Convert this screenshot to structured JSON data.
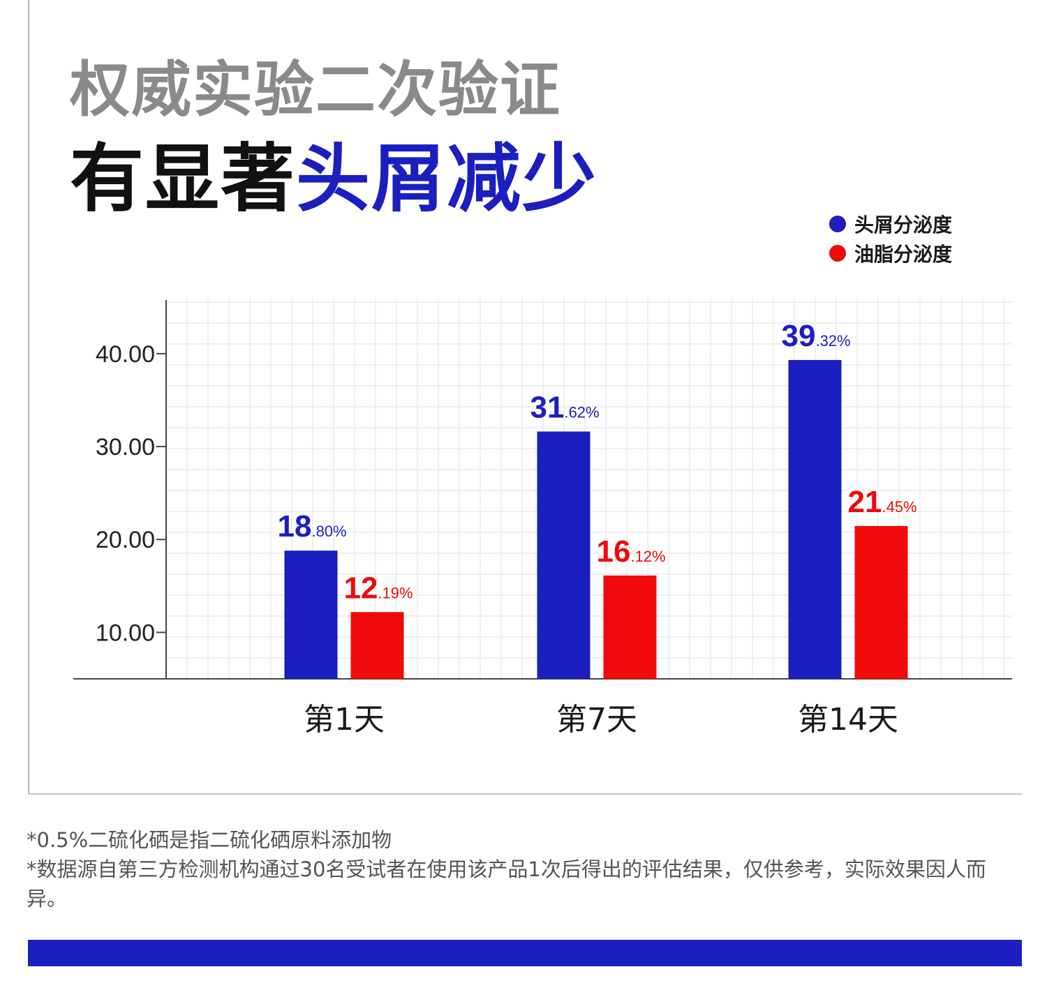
{
  "header": {
    "subtitle": "权威实验二次验证",
    "headline_prefix": "有显著",
    "headline_accent": "头屑减少"
  },
  "legend": [
    {
      "label": "头屑分泌度",
      "color": "#1b1fc0"
    },
    {
      "label": "油脂分泌度",
      "color": "#f00a0a"
    }
  ],
  "chart_data": {
    "type": "bar",
    "categories": [
      "第1天",
      "第7天",
      "第14天"
    ],
    "series": [
      {
        "name": "头屑分泌度",
        "color": "#1b1fc0",
        "values": [
          18.8,
          31.62,
          39.32
        ],
        "labels": [
          {
            "int": "18",
            "dec": ".80%"
          },
          {
            "int": "31",
            "dec": ".62%"
          },
          {
            "int": "39",
            "dec": ".32%"
          }
        ]
      },
      {
        "name": "油脂分泌度",
        "color": "#f00a0a",
        "values": [
          12.19,
          16.12,
          21.45
        ],
        "labels": [
          {
            "int": "12",
            "dec": ".19%"
          },
          {
            "int": "16",
            "dec": ".12%"
          },
          {
            "int": "21",
            "dec": ".45%"
          }
        ]
      }
    ],
    "y_ticks": [
      "10.00",
      "20.00",
      "30.00",
      "40.00"
    ],
    "ylim": [
      5,
      46
    ],
    "grid": true,
    "legend_position": "top-right"
  },
  "notes": [
    "*0.5%二硫化硒是指二硫化硒原料添加物",
    "*数据源自第三方检测机构通过30名受试者在使用该产品1次后得出的评估结果，仅供参考，实际效果因人而异。"
  ]
}
